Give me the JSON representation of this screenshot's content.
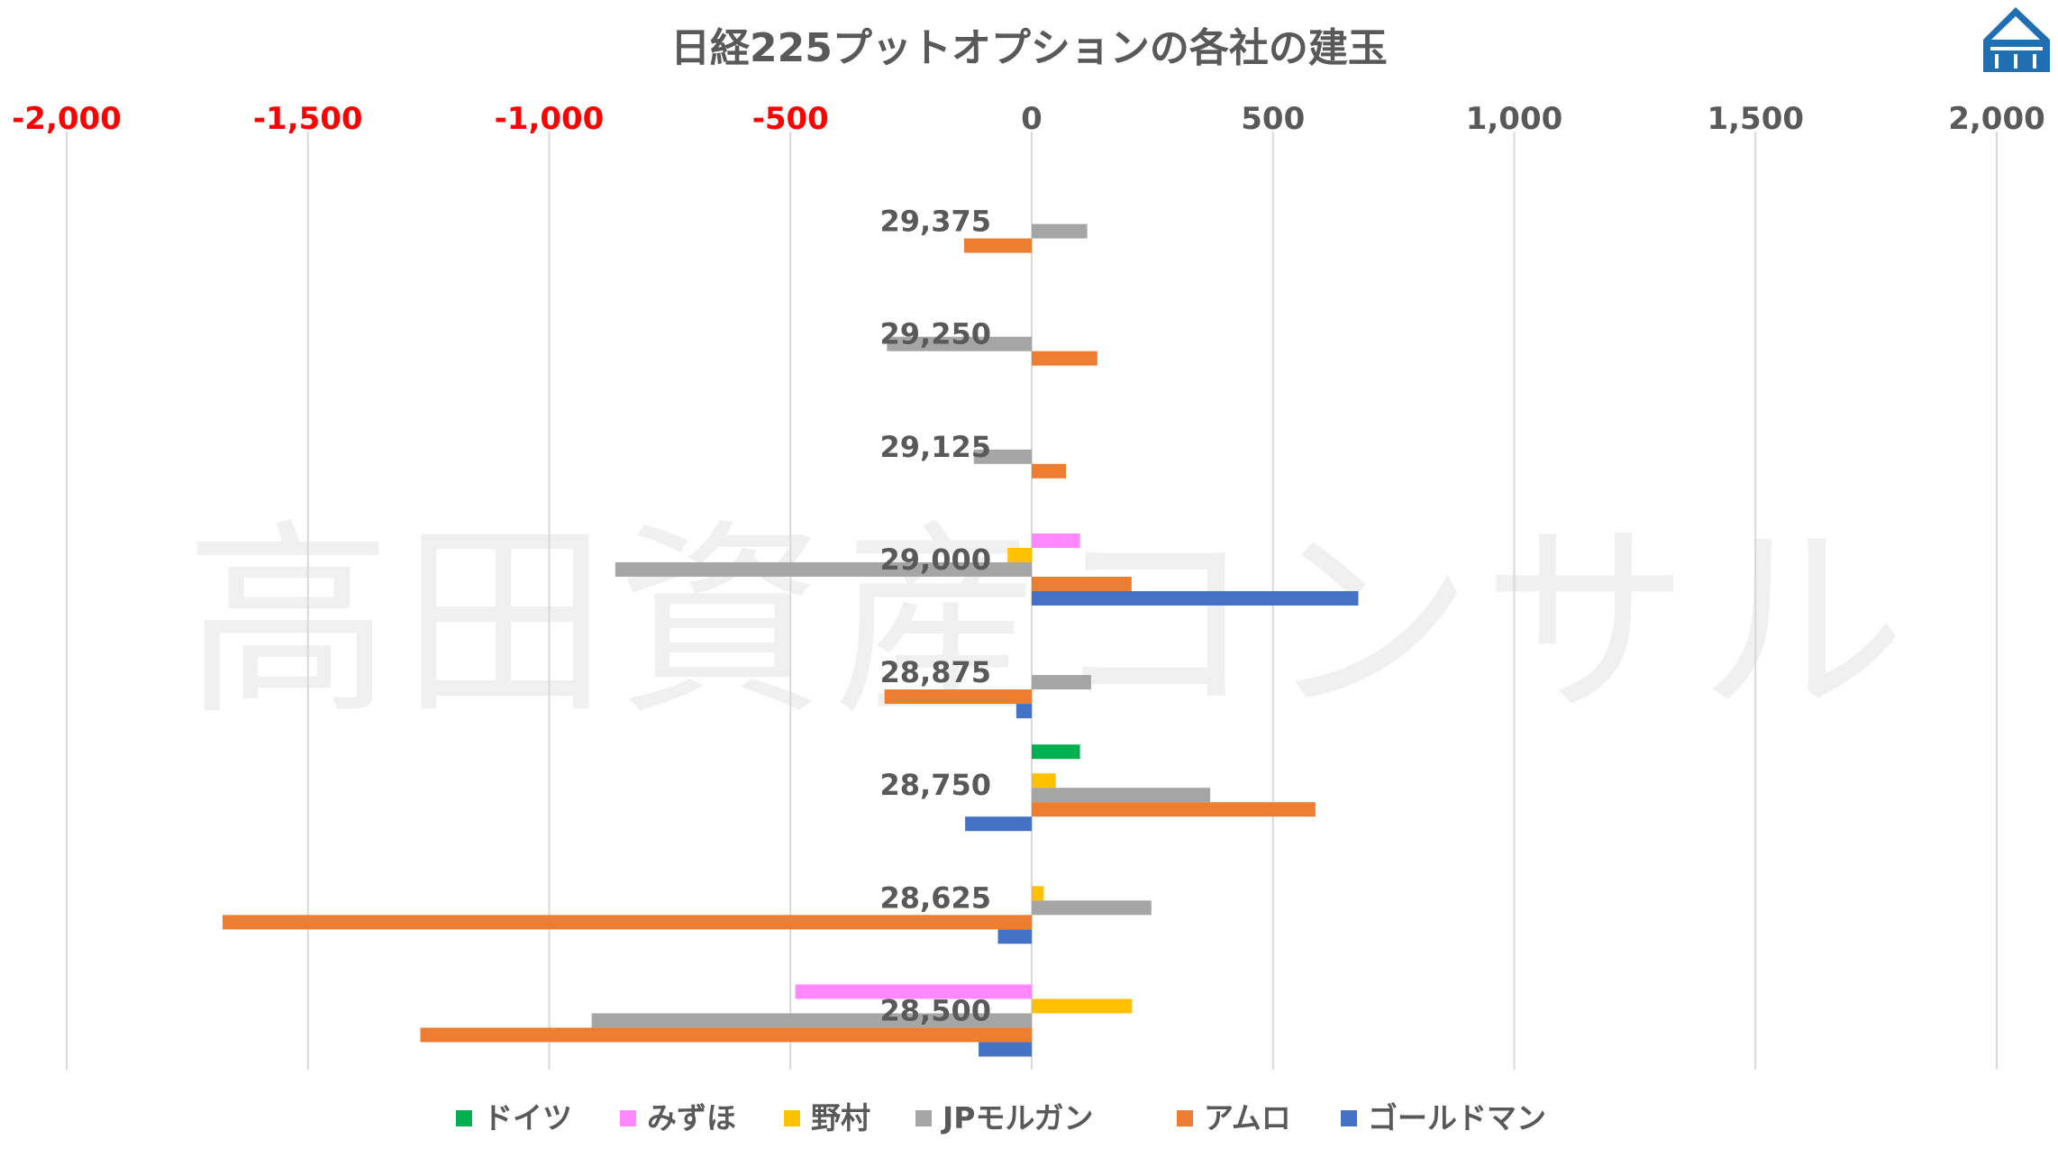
{
  "chart_data": {
    "type": "bar",
    "orientation": "horizontal",
    "title": "日経225プットオプションの各社の建玉",
    "watermark": "高田資産コンサル",
    "categories": [
      "29,375",
      "29,250",
      "29,125",
      "29,000",
      "28,875",
      "28,750",
      "28,625",
      "28,500"
    ],
    "xlim": [
      -2000,
      2000
    ],
    "xticks": [
      -2000,
      -1500,
      -1000,
      -500,
      0,
      500,
      1000,
      1500,
      2000
    ],
    "xtick_labels": [
      "-2,000",
      "-1,500",
      "-1,000",
      "-500",
      "0",
      "500",
      "1,000",
      "1,500",
      "2,000"
    ],
    "negative_tick_color": "#FF0000",
    "positive_tick_color": "#595959",
    "grid": true,
    "legend_position": "bottom",
    "series": [
      {
        "name": "ドイツ",
        "color": "#00B050",
        "values": [
          0,
          0,
          0,
          0,
          0,
          100,
          0,
          0
        ]
      },
      {
        "name": "みずほ",
        "color": "#FF88FF",
        "values": [
          0,
          0,
          0,
          100,
          0,
          0,
          0,
          -490
        ]
      },
      {
        "name": "野村",
        "color": "#FFC000",
        "values": [
          0,
          0,
          0,
          -50,
          0,
          50,
          25,
          208
        ]
      },
      {
        "name": "JPモルガン",
        "color": "#A5A5A5",
        "values": [
          115,
          -300,
          -120,
          -863,
          123,
          370,
          248,
          -912
        ]
      },
      {
        "name": "アムロ",
        "color": "#ED7D31",
        "values": [
          -140,
          136,
          71,
          207,
          -305,
          588,
          -1677,
          -1267
        ]
      },
      {
        "name": "ゴールドマン",
        "color": "#4472C4",
        "values": [
          0,
          0,
          0,
          677,
          -32,
          -138,
          -70,
          -110
        ]
      }
    ]
  }
}
